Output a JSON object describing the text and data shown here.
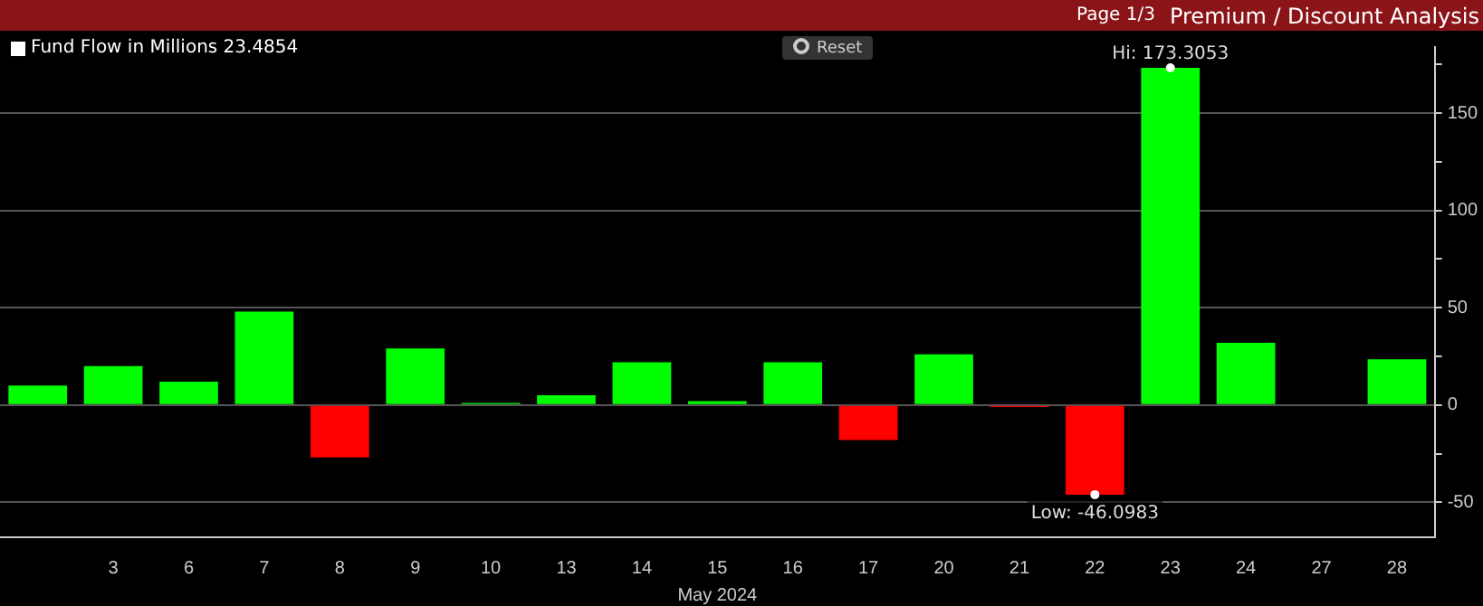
{
  "chart_data": {
    "type": "bar",
    "xlabel": "May 2024",
    "categories": [
      null,
      "3",
      "6",
      "7",
      "8",
      "9",
      "10",
      "13",
      "14",
      "15",
      "16",
      "17",
      "20",
      "21",
      "22",
      "23",
      "24",
      "27",
      "28"
    ],
    "series": [
      {
        "name": "Fund Flow in Millions 23.4854",
        "color": "#ffffff",
        "values": [
          10,
          20,
          12,
          48,
          -27,
          29,
          1,
          5,
          22,
          2,
          22,
          -18,
          26,
          -1,
          -46.0983,
          173.3053,
          32,
          null,
          23.4854
        ],
        "colors": [
          "#00ff00",
          "#00ff00",
          "#00ff00",
          "#00ff00",
          "#ff0000",
          "#00ff00",
          "#00ff00",
          "#00ff00",
          "#00ff00",
          "#00ff00",
          "#00ff00",
          "#ff0000",
          "#00ff00",
          "#ff0000",
          "#ff0000",
          "#00ff00",
          "#00ff00",
          "#00ff00",
          "#00ff00"
        ]
      }
    ],
    "ylim": [
      -68,
      184
    ],
    "yticks": [
      {
        "value": -50,
        "label": "-50"
      },
      {
        "value": -25,
        "label": null
      },
      {
        "value": 0,
        "label": "0"
      },
      {
        "value": 25,
        "label": null
      },
      {
        "value": 50,
        "label": "50"
      },
      {
        "value": 75,
        "label": null
      },
      {
        "value": 100,
        "label": "100"
      },
      {
        "value": 125,
        "label": null
      },
      {
        "value": 150,
        "label": "150"
      },
      {
        "value": 175,
        "label": null
      }
    ],
    "grid": "y",
    "legend": "top left",
    "annotations": [
      "Page 1/3",
      "Premium / Discount Analysis",
      "Reset",
      {
        "text": "Hi: 173.3053",
        "x": "23",
        "y": 173.3053
      },
      {
        "text": "Low: -46.0983",
        "x": "22",
        "y": -46.0983
      }
    ]
  }
}
